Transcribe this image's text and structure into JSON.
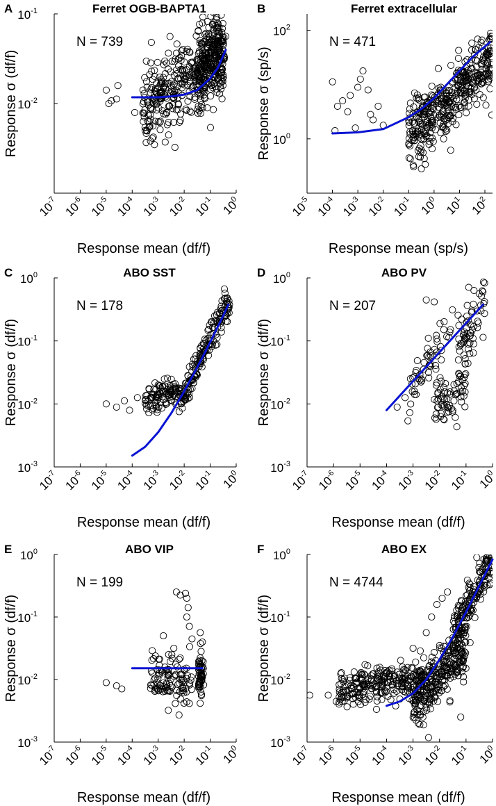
{
  "colors": {
    "fit_line": "#0a14d2",
    "markers": "#000000",
    "axes": "#000000",
    "background": "#ffffff"
  },
  "chart_data": [
    {
      "id": "A",
      "letter": "A",
      "title": "Ferret OGB-BAPTA1",
      "n_label": "N = 739",
      "type": "scatter",
      "xscale": "log",
      "yscale": "log",
      "xlabel": "Response mean (df/f)",
      "ylabel": "Response σ (df/f)",
      "xlim": [
        1e-07,
        1
      ],
      "ylim": [
        0.001,
        0.1
      ],
      "xticks": [
        {
          "base": "10",
          "exp": "-7"
        },
        {
          "base": "10",
          "exp": "-6"
        },
        {
          "base": "10",
          "exp": "-5"
        },
        {
          "base": "10",
          "exp": "-4"
        },
        {
          "base": "10",
          "exp": "-3"
        },
        {
          "base": "10",
          "exp": "-2"
        },
        {
          "base": "10",
          "exp": "-1"
        },
        {
          "base": "10",
          "exp": "0"
        }
      ],
      "xtick_values": [
        -7,
        -6,
        -5,
        -4,
        -3,
        -2,
        -1,
        0
      ],
      "yticks": [
        {
          "base": "10",
          "exp": "-2"
        },
        {
          "base": "10",
          "exp": "-1"
        }
      ],
      "ytick_values": [
        -2,
        -1
      ],
      "fit": {
        "log_x": [
          -4,
          -3.5,
          -3,
          -2.5,
          -2,
          -1.5,
          -1,
          -0.7,
          -0.4
        ],
        "log_y": [
          -1.93,
          -1.93,
          -1.93,
          -1.92,
          -1.9,
          -1.85,
          -1.72,
          -1.6,
          -1.4
        ]
      },
      "scatter_clouds": [
        {
          "n": 340,
          "x_range": [
            -3.6,
            -0.5
          ],
          "center_x": -1.5,
          "slope": 0.18,
          "intercept": -1.66,
          "spread": 0.2
        },
        {
          "n": 230,
          "x_range": [
            -1.5,
            -0.45
          ],
          "center_x": -1.0,
          "slope": 0.35,
          "intercept": -1.5,
          "spread": 0.22
        }
      ],
      "scatter_points": [
        [
          -5.0,
          -1.85
        ],
        [
          -4.8,
          -1.97
        ],
        [
          -4.6,
          -1.95
        ],
        [
          -4.9,
          -2.0
        ],
        [
          -4.55,
          -1.8
        ],
        [
          -3.9,
          -2.1
        ],
        [
          -3.5,
          -2.3
        ],
        [
          -3.2,
          -2.25
        ],
        [
          -2.6,
          -2.35
        ],
        [
          -0.4,
          -1.25
        ],
        [
          -0.6,
          -1.3
        ],
        [
          -0.5,
          -1.35
        ]
      ]
    },
    {
      "id": "B",
      "letter": "B",
      "title": "Ferret extracellular",
      "n_label": "N = 471",
      "type": "scatter",
      "xscale": "log",
      "yscale": "log",
      "xlabel": "Response mean (sp/s)",
      "ylabel": "Response σ (sp/s)",
      "xlim": [
        1e-05,
        200
      ],
      "ylim": [
        0.1,
        200
      ],
      "xticks": [
        {
          "base": "10",
          "exp": "-5"
        },
        {
          "base": "10",
          "exp": "-4"
        },
        {
          "base": "10",
          "exp": "-3"
        },
        {
          "base": "10",
          "exp": "-2"
        },
        {
          "base": "10",
          "exp": "-1"
        },
        {
          "base": "10",
          "exp": "0"
        },
        {
          "base": "10",
          "exp": "1"
        },
        {
          "base": "10",
          "exp": "2"
        }
      ],
      "xtick_values": [
        -5,
        -4,
        -3,
        -2,
        -1,
        0,
        1,
        2
      ],
      "yticks": [
        {
          "base": "10",
          "exp": "0"
        },
        {
          "base": "10",
          "exp": "2"
        }
      ],
      "ytick_values": [
        0,
        2
      ],
      "fit": {
        "log_x": [
          -4,
          -3,
          -2,
          -1,
          -0.5,
          0,
          0.5,
          1,
          1.5,
          2.2
        ],
        "log_y": [
          0.1,
          0.12,
          0.18,
          0.4,
          0.55,
          0.75,
          1.0,
          1.25,
          1.5,
          1.78
        ]
      },
      "scatter_clouds": [
        {
          "n": 420,
          "x_range": [
            -1,
            2.3
          ],
          "center_x": 0.6,
          "slope": 0.45,
          "intercept": 0.75,
          "spread": 0.3
        }
      ],
      "scatter_points": [
        [
          -4.0,
          1.05
        ],
        [
          -3.8,
          0.6
        ],
        [
          -3.6,
          0.7
        ],
        [
          -3.4,
          0.5
        ],
        [
          -3.3,
          0.8
        ],
        [
          -3.0,
          0.95
        ],
        [
          -2.9,
          1.1
        ],
        [
          -2.8,
          1.25
        ],
        [
          -2.6,
          0.9
        ],
        [
          -2.5,
          0.45
        ],
        [
          -2.0,
          0.25
        ],
        [
          -3.1,
          0.2
        ],
        [
          -2.4,
          0.35
        ],
        [
          -3.9,
          0.15
        ],
        [
          -2.2,
          0.6
        ],
        [
          -0.5,
          -0.55
        ]
      ]
    },
    {
      "id": "C",
      "letter": "C",
      "title": "ABO SST",
      "n_label": "N = 178",
      "type": "scatter",
      "xscale": "log",
      "yscale": "log",
      "xlabel": "Response mean (df/f)",
      "ylabel": "Response σ (df/f)",
      "xlim": [
        1e-07,
        1
      ],
      "ylim": [
        0.001,
        1
      ],
      "xticks": [
        {
          "base": "10",
          "exp": "-7"
        },
        {
          "base": "10",
          "exp": "-6"
        },
        {
          "base": "10",
          "exp": "-5"
        },
        {
          "base": "10",
          "exp": "-4"
        },
        {
          "base": "10",
          "exp": "-3"
        },
        {
          "base": "10",
          "exp": "-2"
        },
        {
          "base": "10",
          "exp": "-1"
        },
        {
          "base": "10",
          "exp": "0"
        }
      ],
      "xtick_values": [
        -7,
        -6,
        -5,
        -4,
        -3,
        -2,
        -1,
        0
      ],
      "yticks": [
        {
          "base": "10",
          "exp": "-3"
        },
        {
          "base": "10",
          "exp": "-2"
        },
        {
          "base": "10",
          "exp": "-1"
        },
        {
          "base": "10",
          "exp": "0"
        }
      ],
      "ytick_values": [
        -3,
        -2,
        -1,
        0
      ],
      "fit": {
        "log_x": [
          -4,
          -3.5,
          -3,
          -2.5,
          -2,
          -1.5,
          -1,
          -0.5,
          -0.3
        ],
        "log_y": [
          -2.82,
          -2.68,
          -2.45,
          -2.15,
          -1.8,
          -1.42,
          -1.02,
          -0.6,
          -0.42
        ]
      },
      "scatter_clouds": [
        {
          "n": 110,
          "x_range": [
            -3.5,
            -2
          ],
          "center_x": -2.7,
          "slope": 0.1,
          "intercept": -1.85,
          "spread": 0.12
        },
        {
          "n": 170,
          "x_range": [
            -2.2,
            -0.25
          ],
          "center_x": -1.2,
          "slope": 0.85,
          "intercept": -1.15,
          "spread": 0.13
        }
      ],
      "scatter_points": [
        [
          -5.0,
          -2.0
        ],
        [
          -4.6,
          -2.05
        ],
        [
          -4.3,
          -1.95
        ],
        [
          -4.1,
          -2.1
        ],
        [
          -3.8,
          -1.9
        ],
        [
          -3.0,
          -1.7
        ]
      ]
    },
    {
      "id": "D",
      "letter": "D",
      "title": "ABO PV",
      "n_label": "N = 207",
      "type": "scatter",
      "xscale": "log",
      "yscale": "log",
      "xlabel": "Response mean (df/f)",
      "ylabel": "Response σ (df/f)",
      "xlim": [
        1e-07,
        1
      ],
      "ylim": [
        0.001,
        1
      ],
      "xticks": [
        {
          "base": "10",
          "exp": "-7"
        },
        {
          "base": "10",
          "exp": "-6"
        },
        {
          "base": "10",
          "exp": "-5"
        },
        {
          "base": "10",
          "exp": "-4"
        },
        {
          "base": "10",
          "exp": "-3"
        },
        {
          "base": "10",
          "exp": "-2"
        },
        {
          "base": "10",
          "exp": "-1"
        },
        {
          "base": "10",
          "exp": "0"
        }
      ],
      "xtick_values": [
        -7,
        -6,
        -5,
        -4,
        -3,
        -2,
        -1,
        0
      ],
      "yticks": [
        {
          "base": "10",
          "exp": "-3"
        },
        {
          "base": "10",
          "exp": "-2"
        },
        {
          "base": "10",
          "exp": "-1"
        },
        {
          "base": "10",
          "exp": "0"
        }
      ],
      "ytick_values": [
        -3,
        -2,
        -1,
        0
      ],
      "fit": {
        "log_x": [
          -4,
          -0.35
        ],
        "log_y": [
          -2.1,
          -0.42
        ]
      },
      "scatter_clouds": [
        {
          "n": 70,
          "x_range": [
            -2.2,
            -1.0
          ],
          "center_x": -1.6,
          "slope": 0.2,
          "intercept": -1.85,
          "spread": 0.22
        },
        {
          "n": 60,
          "x_range": [
            -1.3,
            -0.3
          ],
          "center_x": -0.8,
          "slope": 0.4,
          "intercept": -0.8,
          "spread": 0.25
        },
        {
          "n": 50,
          "x_range": [
            -3.2,
            -1.4
          ],
          "center_x": -2.3,
          "slope": 0.6,
          "intercept": -1.25,
          "spread": 0.2
        }
      ],
      "scatter_points": [
        [
          -3.6,
          -2.05
        ],
        [
          -3.3,
          -1.9
        ],
        [
          -3.1,
          -1.6
        ],
        [
          -2.9,
          -1.5
        ],
        [
          -2.6,
          -1.45
        ],
        [
          -2.4,
          -1.25
        ],
        [
          -2.5,
          -0.35
        ],
        [
          -2.2,
          -0.38
        ],
        [
          -0.9,
          -0.15
        ],
        [
          -0.7,
          -0.2
        ],
        [
          -0.5,
          -0.25
        ],
        [
          -0.3,
          -0.08
        ],
        [
          -1.5,
          -2.1
        ],
        [
          -1.7,
          -2.05
        ]
      ]
    },
    {
      "id": "E",
      "letter": "E",
      "title": "ABO VIP",
      "n_label": "N = 199",
      "type": "scatter",
      "xscale": "log",
      "yscale": "log",
      "xlabel": "Response mean (df/f)",
      "ylabel": "Response σ (df/f)",
      "xlim": [
        1e-07,
        1
      ],
      "ylim": [
        0.001,
        1
      ],
      "xticks": [
        {
          "base": "10",
          "exp": "-7"
        },
        {
          "base": "10",
          "exp": "-6"
        },
        {
          "base": "10",
          "exp": "-5"
        },
        {
          "base": "10",
          "exp": "-4"
        },
        {
          "base": "10",
          "exp": "-3"
        },
        {
          "base": "10",
          "exp": "-2"
        },
        {
          "base": "10",
          "exp": "-1"
        },
        {
          "base": "10",
          "exp": "0"
        }
      ],
      "xtick_values": [
        -7,
        -6,
        -5,
        -4,
        -3,
        -2,
        -1,
        0
      ],
      "yticks": [
        {
          "base": "10",
          "exp": "-3"
        },
        {
          "base": "10",
          "exp": "-2"
        },
        {
          "base": "10",
          "exp": "-1"
        },
        {
          "base": "10",
          "exp": "0"
        }
      ],
      "ytick_values": [
        -3,
        -2,
        -1,
        0
      ],
      "fit": {
        "log_x": [
          -4,
          -1.3
        ],
        "log_y": [
          -1.82,
          -1.82
        ]
      },
      "scatter_clouds": [
        {
          "n": 110,
          "x_range": [
            -3.3,
            -1.7
          ],
          "center_x": -2.5,
          "slope": 0,
          "intercept": -2.0,
          "spread": 0.17
        },
        {
          "n": 55,
          "x_range": [
            -1.45,
            -1.25
          ],
          "center_x": -1.35,
          "slope": 0,
          "intercept": -1.95,
          "spread": 0.16
        }
      ],
      "scatter_points": [
        [
          -5.0,
          -2.05
        ],
        [
          -4.6,
          -2.1
        ],
        [
          -4.4,
          -2.15
        ],
        [
          -2.8,
          -1.3
        ],
        [
          -2.3,
          -0.6
        ],
        [
          -2.15,
          -0.65
        ],
        [
          -1.95,
          -0.62
        ],
        [
          -1.9,
          -0.7
        ],
        [
          -1.85,
          -0.85
        ],
        [
          -1.9,
          -1.0
        ],
        [
          -1.8,
          -1.15
        ],
        [
          -1.7,
          -1.35
        ],
        [
          -2.4,
          -1.5
        ],
        [
          -2.6,
          -1.6
        ],
        [
          -1.3,
          -1.4
        ],
        [
          -1.35,
          -1.55
        ],
        [
          -1.32,
          -1.7
        ],
        [
          -1.38,
          -1.25
        ]
      ]
    },
    {
      "id": "F",
      "letter": "F",
      "title": "ABO EX",
      "n_label": "N = 4744",
      "type": "scatter",
      "xscale": "log",
      "yscale": "log",
      "xlabel": "Response mean (df/f)",
      "ylabel": "Response σ (df/f)",
      "xlim": [
        1e-07,
        1
      ],
      "ylim": [
        0.001,
        1
      ],
      "xticks": [
        {
          "base": "10",
          "exp": "-7"
        },
        {
          "base": "10",
          "exp": "-6"
        },
        {
          "base": "10",
          "exp": "-5"
        },
        {
          "base": "10",
          "exp": "-4"
        },
        {
          "base": "10",
          "exp": "-3"
        },
        {
          "base": "10",
          "exp": "-2"
        },
        {
          "base": "10",
          "exp": "-1"
        },
        {
          "base": "10",
          "exp": "0"
        }
      ],
      "xtick_values": [
        -7,
        -6,
        -5,
        -4,
        -3,
        -2,
        -1,
        0
      ],
      "yticks": [
        {
          "base": "10",
          "exp": "-3"
        },
        {
          "base": "10",
          "exp": "-2"
        },
        {
          "base": "10",
          "exp": "-1"
        },
        {
          "base": "10",
          "exp": "0"
        }
      ],
      "ytick_values": [
        -3,
        -2,
        -1,
        0
      ],
      "fit": {
        "log_x": [
          -4,
          -3.5,
          -3,
          -2.5,
          -2,
          -1.5,
          -1,
          -0.5,
          0
        ],
        "log_y": [
          -2.42,
          -2.35,
          -2.22,
          -2.0,
          -1.68,
          -1.32,
          -0.92,
          -0.5,
          -0.08
        ]
      },
      "scatter_clouds": [
        {
          "n": 260,
          "x_range": [
            -5.8,
            -2.5
          ],
          "center_x": -4,
          "slope": 0.05,
          "intercept": -2.05,
          "spread": 0.14
        },
        {
          "n": 280,
          "x_range": [
            -3,
            -1
          ],
          "center_x": -2,
          "slope": 0.45,
          "intercept": -1.95,
          "spread": 0.22
        },
        {
          "n": 170,
          "x_range": [
            -1.5,
            0
          ],
          "center_x": -0.7,
          "slope": 0.8,
          "intercept": -0.65,
          "spread": 0.18
        }
      ],
      "scatter_points": [
        [
          -6.9,
          -2.25
        ],
        [
          -6.2,
          -2.25
        ],
        [
          -5.9,
          -2.35
        ],
        [
          -4.0,
          -1.9
        ],
        [
          -3.4,
          -1.8
        ],
        [
          -3.0,
          -1.5
        ],
        [
          -2.5,
          -1.25
        ],
        [
          -2.3,
          -1.0
        ],
        [
          -2.1,
          -0.8
        ],
        [
          -1.9,
          -0.7
        ],
        [
          -1.7,
          -0.6
        ],
        [
          -2.8,
          -2.7
        ],
        [
          -1.2,
          -2.6
        ],
        [
          -0.1,
          -0.02
        ],
        [
          -0.25,
          -0.1
        ],
        [
          -0.4,
          -0.25
        ]
      ]
    }
  ]
}
